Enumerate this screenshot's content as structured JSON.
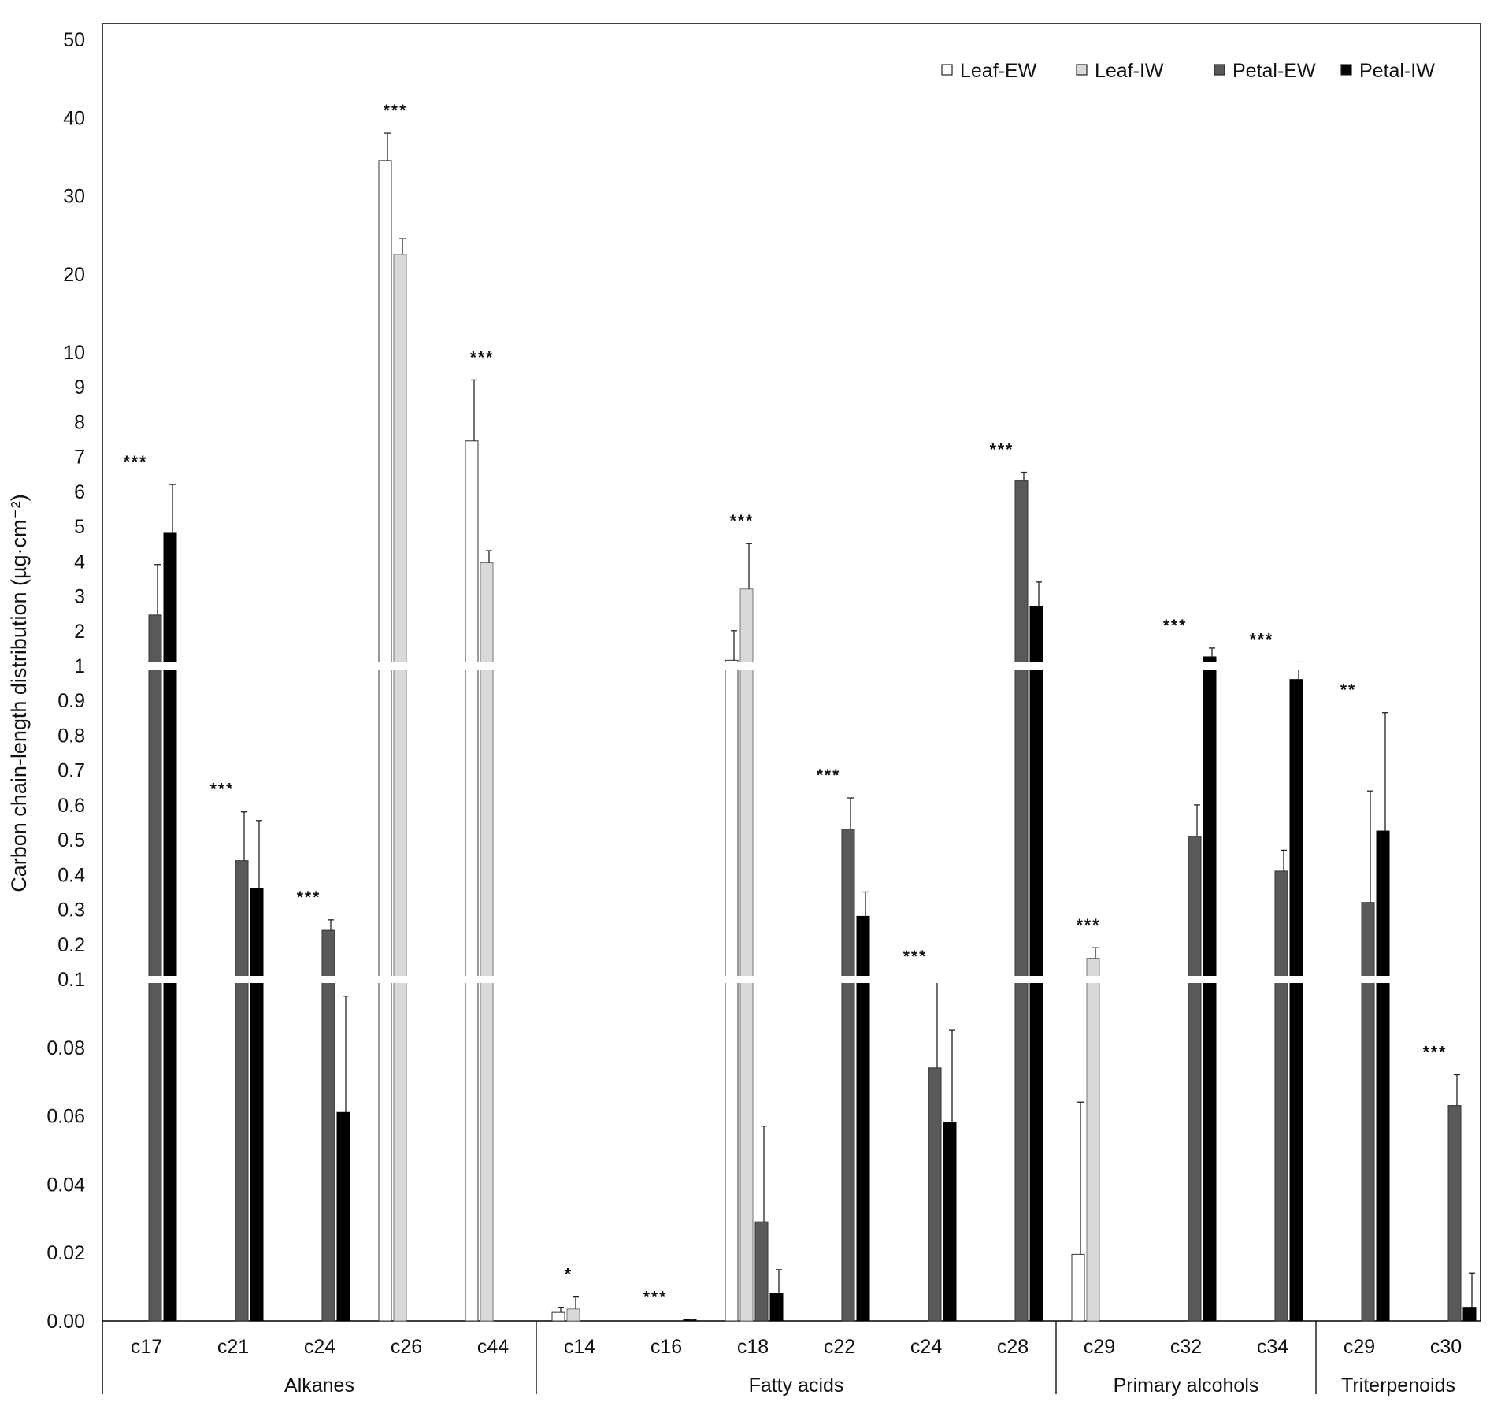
{
  "chart_data": {
    "type": "bar",
    "ylabel": "Carbon chain-length distribution (µg·cm⁻²)",
    "y_scale": "broken",
    "y_segments": [
      {
        "range": [
          0,
          0.1
        ],
        "ticks": [
          {
            "v": 0,
            "label": "0.00"
          },
          {
            "v": 0.02,
            "label": "0.02"
          },
          {
            "v": 0.04,
            "label": "0.04"
          },
          {
            "v": 0.06,
            "label": "0.06"
          },
          {
            "v": 0.08,
            "label": "0.08"
          },
          {
            "v": 0.1,
            "label": "0.1"
          }
        ]
      },
      {
        "range": [
          0.1,
          1
        ],
        "ticks": [
          {
            "v": 0.2,
            "label": "0.2"
          },
          {
            "v": 0.3,
            "label": "0.3"
          },
          {
            "v": 0.4,
            "label": "0.4"
          },
          {
            "v": 0.5,
            "label": "0.5"
          },
          {
            "v": 0.6,
            "label": "0.6"
          },
          {
            "v": 0.7,
            "label": "0.7"
          },
          {
            "v": 0.8,
            "label": "0.8"
          },
          {
            "v": 0.9,
            "label": "0.9"
          },
          {
            "v": 1,
            "label": "1"
          }
        ]
      },
      {
        "range": [
          1,
          10
        ],
        "ticks": [
          {
            "v": 2,
            "label": "2"
          },
          {
            "v": 3,
            "label": "3"
          },
          {
            "v": 4,
            "label": "4"
          },
          {
            "v": 5,
            "label": "5"
          },
          {
            "v": 6,
            "label": "6"
          },
          {
            "v": 7,
            "label": "7"
          },
          {
            "v": 8,
            "label": "8"
          },
          {
            "v": 9,
            "label": "9"
          },
          {
            "v": 10,
            "label": "10"
          }
        ]
      },
      {
        "range": [
          10,
          50
        ],
        "ticks": [
          {
            "v": 20,
            "label": "20"
          },
          {
            "v": 30,
            "label": "30"
          },
          {
            "v": 40,
            "label": "40"
          },
          {
            "v": 50,
            "label": "50"
          }
        ]
      }
    ],
    "legend": {
      "position": "top-right",
      "entries": [
        {
          "name": "Leaf-EW",
          "color": "#ffffff"
        },
        {
          "name": "Leaf-IW",
          "color": "#d9d9d9"
        },
        {
          "name": "Petal-EW",
          "color": "#595959"
        },
        {
          "name": "Petal-IW",
          "color": "#000000"
        }
      ]
    },
    "series_names": [
      "Leaf-EW",
      "Leaf-IW",
      "Petal-EW",
      "Petal-IW"
    ],
    "groups": [
      {
        "name": "Alkanes",
        "categories": [
          {
            "label": "c17",
            "significance": "***",
            "bars": [
              null,
              null,
              {
                "value": 2.45,
                "error": 3.9
              },
              {
                "value": 4.8,
                "error": 6.2
              }
            ]
          },
          {
            "label": "c21",
            "significance": "***",
            "bars": [
              null,
              null,
              {
                "value": 0.44,
                "error": 0.58
              },
              {
                "value": 0.36,
                "error": 0.555
              }
            ]
          },
          {
            "label": "c24",
            "significance": "***",
            "bars": [
              null,
              null,
              {
                "value": 0.24,
                "error": 0.27
              },
              {
                "value": 0.061,
                "error": 0.095
              }
            ]
          },
          {
            "label": "c26",
            "significance": "***",
            "bars": [
              {
                "value": 34.5,
                "error": 38
              },
              {
                "value": 22.5,
                "error": 24.5
              },
              null,
              null
            ]
          },
          {
            "label": "c44",
            "significance": "***",
            "bars": [
              {
                "value": 7.45,
                "error": 9.2
              },
              {
                "value": 3.95,
                "error": 4.3
              },
              null,
              null
            ]
          }
        ]
      },
      {
        "name": "Fatty acids",
        "categories": [
          {
            "label": "c14",
            "significance": "*",
            "bars": [
              {
                "value": 0.0025,
                "error": 0.004
              },
              {
                "value": 0.0035,
                "error": 0.007
              },
              null,
              null
            ]
          },
          {
            "label": "c16",
            "significance": "***",
            "bars": [
              null,
              null,
              null,
              {
                "value": 0.0003,
                "error": 0.0003
              }
            ]
          },
          {
            "label": "c18",
            "significance": "***",
            "bars": [
              {
                "value": 1.15,
                "error": 2
              },
              {
                "value": 3.2,
                "error": 4.5
              },
              {
                "value": 0.029,
                "error": 0.057
              },
              {
                "value": 0.008,
                "error": 0.015
              }
            ]
          },
          {
            "label": "c22",
            "significance": "***",
            "bars": [
              null,
              null,
              {
                "value": 0.53,
                "error": 0.62
              },
              {
                "value": 0.28,
                "error": 0.35
              }
            ]
          },
          {
            "label": "c24",
            "significance": "***",
            "bars": [
              null,
              null,
              {
                "value": 0.074,
                "error": 0.1
              },
              {
                "value": 0.058,
                "error": 0.085
              }
            ]
          },
          {
            "label": "c28",
            "significance": "***",
            "bars": [
              null,
              null,
              {
                "value": 6.3,
                "error": 6.55
              },
              {
                "value": 2.7,
                "error": 3.4
              }
            ]
          }
        ]
      },
      {
        "name": "Primary alcohols",
        "categories": [
          {
            "label": "c29",
            "significance": "***",
            "bars": [
              {
                "value": 0.0195,
                "error": 0.064
              },
              {
                "value": 0.16,
                "error": 0.19
              },
              null,
              null
            ]
          },
          {
            "label": "c32",
            "significance": "***",
            "bars": [
              null,
              null,
              {
                "value": 0.51,
                "error": 0.6
              },
              {
                "value": 1.25,
                "error": 1.5
              }
            ]
          },
          {
            "label": "c34",
            "significance": "***",
            "bars": [
              null,
              null,
              {
                "value": 0.41,
                "error": 0.47
              },
              {
                "value": 0.96,
                "error": 1.1
              }
            ]
          }
        ]
      },
      {
        "name": "Triterpenoids",
        "categories": [
          {
            "label": "c29",
            "significance": "**",
            "bars": [
              null,
              null,
              {
                "value": 0.32,
                "error": 0.64
              },
              {
                "value": 0.525,
                "error": 0.865
              }
            ]
          },
          {
            "label": "c30",
            "significance": "***",
            "bars": [
              null,
              null,
              {
                "value": 0.063,
                "error": 0.072
              },
              {
                "value": 0.004,
                "error": 0.014
              }
            ]
          }
        ]
      }
    ]
  }
}
